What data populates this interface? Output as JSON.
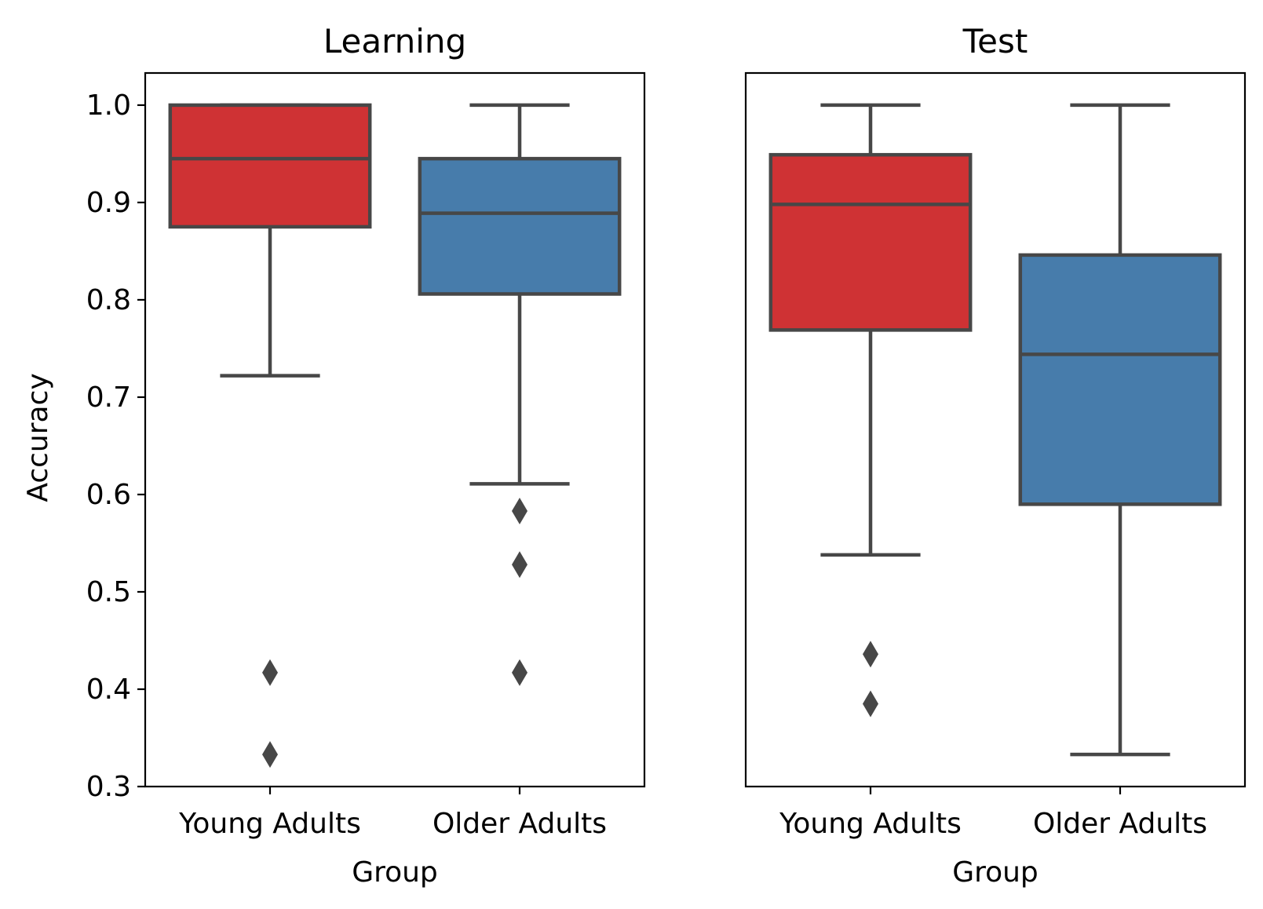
{
  "chart_data": [
    {
      "type": "box",
      "title": "Learning",
      "xlabel": "Group",
      "ylabel": "Accuracy",
      "categories": [
        "Young Adults",
        "Older Adults"
      ],
      "ylim": [
        0.3,
        1.033
      ],
      "yticks": [
        "0.3",
        "0.4",
        "0.5",
        "0.6",
        "0.7",
        "0.8",
        "0.9",
        "1.0"
      ],
      "show_yticks": true,
      "grid": false,
      "boxes": [
        {
          "category": "Young Adults",
          "whisker_low": 0.722,
          "q1": 0.875,
          "median": 0.945,
          "q3": 1.0,
          "whisker_high": 1.0,
          "outliers": [
            0.417,
            0.333
          ],
          "color": "#cf3234"
        },
        {
          "category": "Older Adults",
          "whisker_low": 0.611,
          "q1": 0.806,
          "median": 0.889,
          "q3": 0.945,
          "whisker_high": 1.0,
          "outliers": [
            0.583,
            0.528,
            0.417
          ],
          "color": "#477cab"
        }
      ]
    },
    {
      "type": "box",
      "title": "Test",
      "xlabel": "Group",
      "ylabel": "",
      "categories": [
        "Young Adults",
        "Older Adults"
      ],
      "ylim": [
        0.3,
        1.033
      ],
      "yticks": [],
      "show_yticks": false,
      "grid": false,
      "boxes": [
        {
          "category": "Young Adults",
          "whisker_low": 0.538,
          "q1": 0.769,
          "median": 0.898,
          "q3": 0.949,
          "whisker_high": 1.0,
          "outliers": [
            0.436,
            0.385
          ],
          "color": "#cf3234"
        },
        {
          "category": "Older Adults",
          "whisker_low": 0.333,
          "q1": 0.59,
          "median": 0.744,
          "q3": 0.846,
          "whisker_high": 1.0,
          "outliers": [],
          "color": "#477cab"
        }
      ]
    }
  ]
}
